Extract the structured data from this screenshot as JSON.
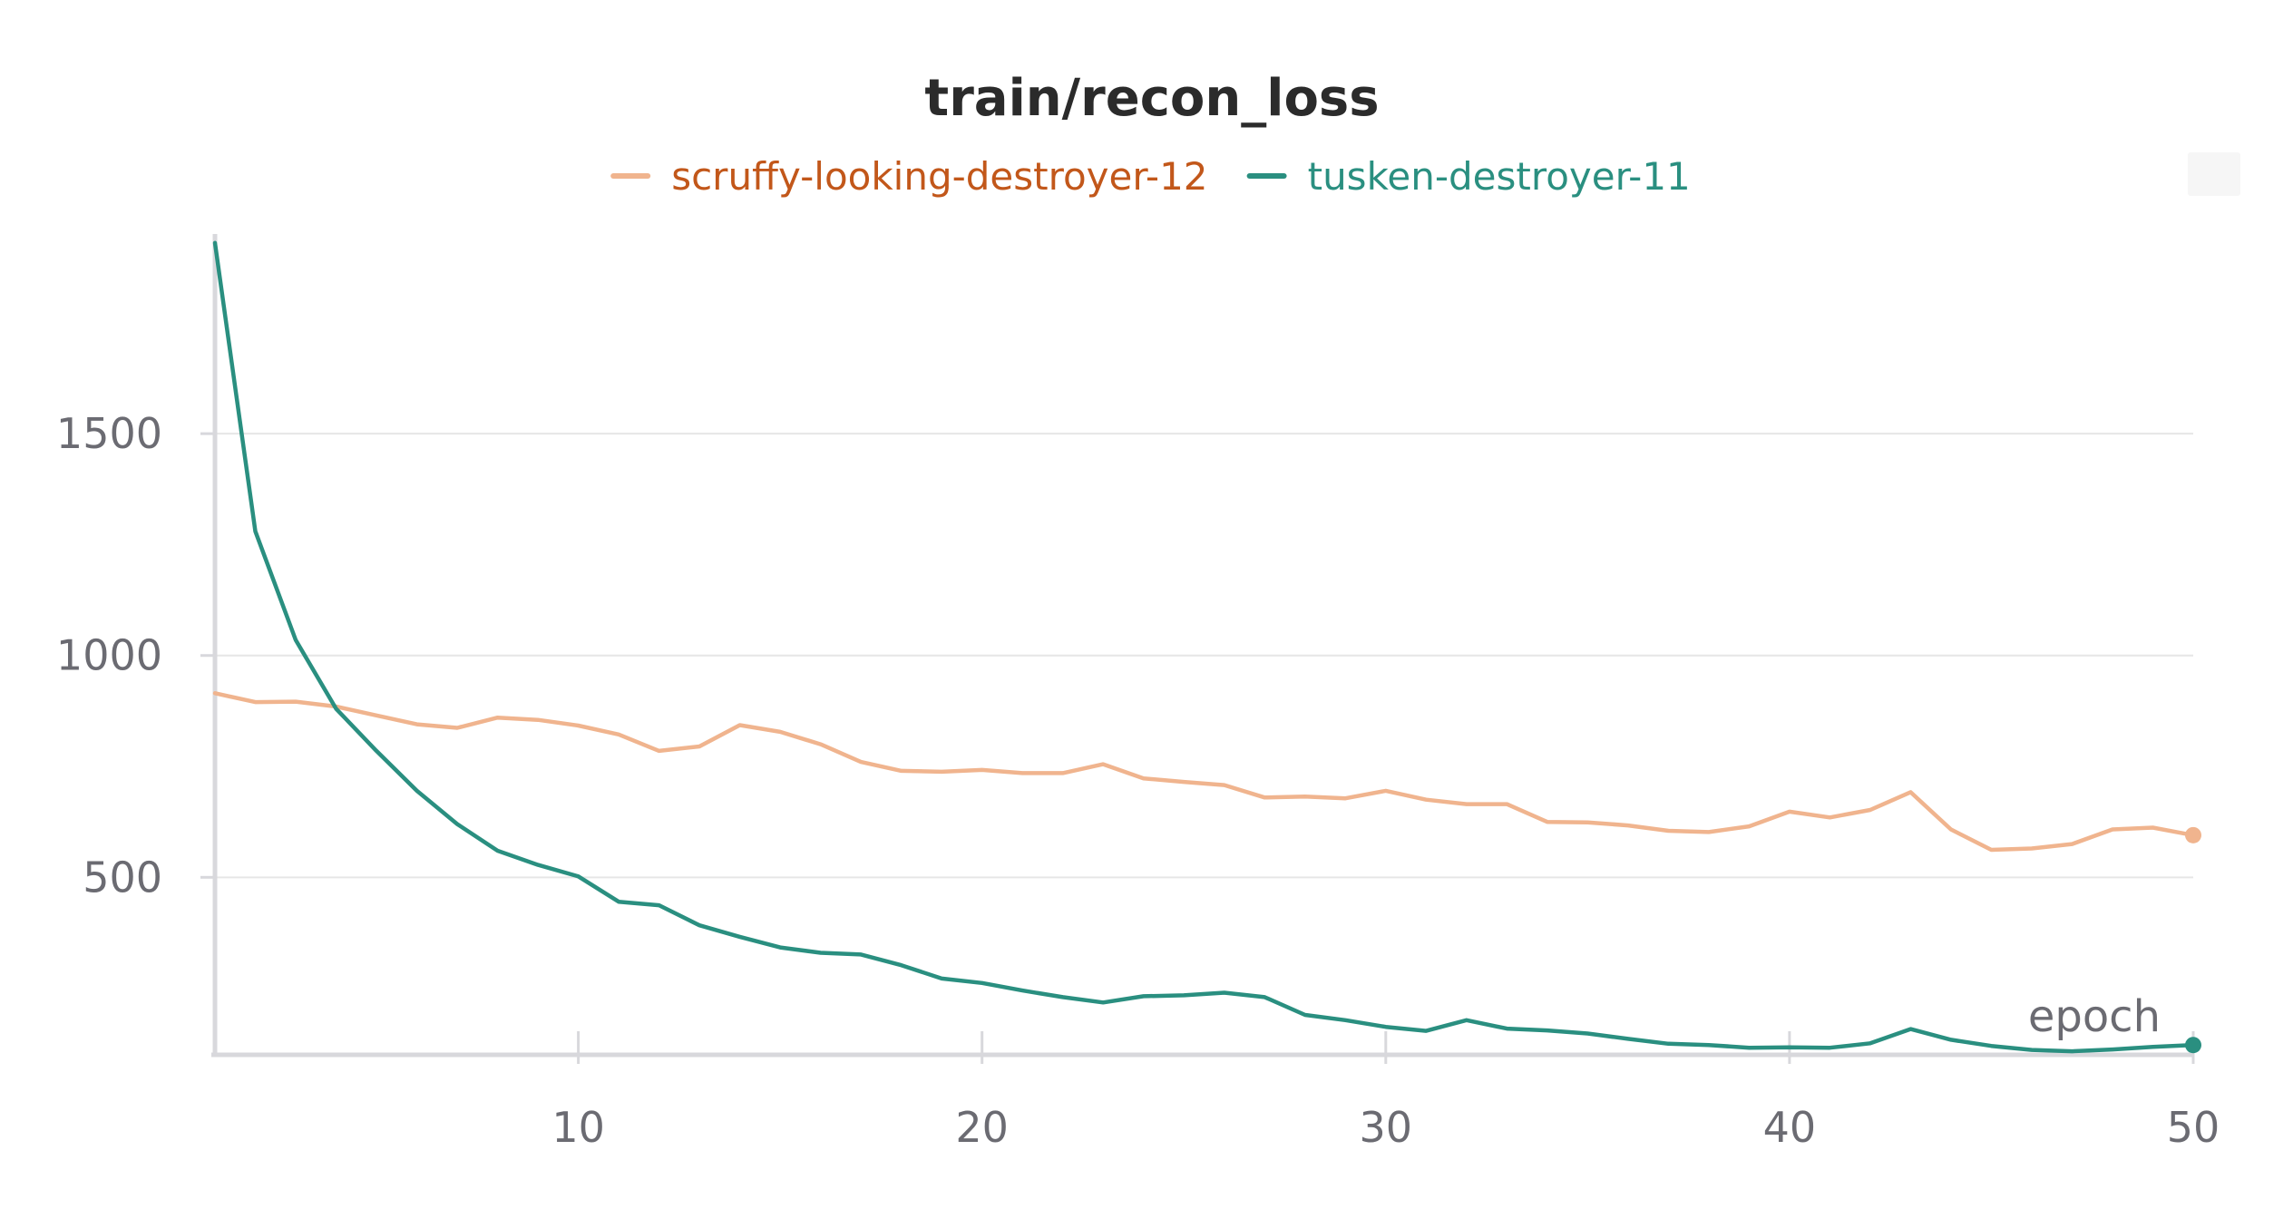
{
  "chart_data": {
    "type": "line",
    "title": "train/recon_loss",
    "xlabel": "epoch",
    "ylabel": "",
    "xlim": [
      1,
      50
    ],
    "ylim": [
      100,
      1950
    ],
    "xticks": [
      10,
      20,
      30,
      40,
      50
    ],
    "yticks": [
      500,
      1000,
      1500
    ],
    "grid": "horizontal",
    "legend_position": "top-center",
    "series": [
      {
        "name": "scruffy-looking-destroyer-12",
        "color": "#F0B48E",
        "legend_text_color": "#C2571A",
        "x": [
          1,
          2,
          3,
          4,
          5,
          6,
          7,
          8,
          9,
          10,
          11,
          12,
          13,
          14,
          15,
          16,
          17,
          18,
          19,
          20,
          21,
          22,
          23,
          24,
          25,
          26,
          27,
          28,
          29,
          30,
          31,
          32,
          33,
          34,
          35,
          36,
          37,
          38,
          39,
          40,
          41,
          42,
          43,
          44,
          45,
          46,
          47,
          48,
          49,
          50
        ],
        "values": [
          915,
          895,
          896,
          885,
          865,
          845,
          837,
          860,
          855,
          842,
          822,
          785,
          795,
          843,
          828,
          800,
          760,
          740,
          738,
          742,
          735,
          735,
          755,
          723,
          715,
          708,
          680,
          682,
          678,
          695,
          675,
          665,
          665,
          625,
          624,
          617,
          605,
          602,
          615,
          648,
          635,
          652,
          692,
          608,
          562,
          565,
          575,
          608,
          612,
          595
        ]
      },
      {
        "name": "tusken-destroyer-11",
        "color": "#2A8F80",
        "legend_text_color": "#2A8F80",
        "x": [
          1,
          2,
          3,
          4,
          5,
          6,
          7,
          8,
          9,
          10,
          11,
          12,
          13,
          14,
          15,
          16,
          17,
          18,
          19,
          20,
          21,
          22,
          23,
          24,
          25,
          26,
          27,
          28,
          29,
          30,
          31,
          32,
          33,
          34,
          35,
          36,
          37,
          38,
          39,
          40,
          41,
          42,
          43,
          44,
          45,
          46,
          47,
          48,
          49,
          50
        ],
        "values": [
          1930,
          1280,
          1035,
          880,
          785,
          695,
          620,
          560,
          528,
          502,
          445,
          437,
          392,
          366,
          342,
          330,
          326,
          302,
          272,
          262,
          245,
          230,
          218,
          232,
          234,
          240,
          230,
          190,
          178,
          163,
          154,
          178,
          159,
          155,
          148,
          136,
          125,
          122,
          116,
          117,
          116,
          126,
          158,
          134,
          120,
          111,
          108,
          112,
          118,
          122
        ]
      }
    ]
  }
}
